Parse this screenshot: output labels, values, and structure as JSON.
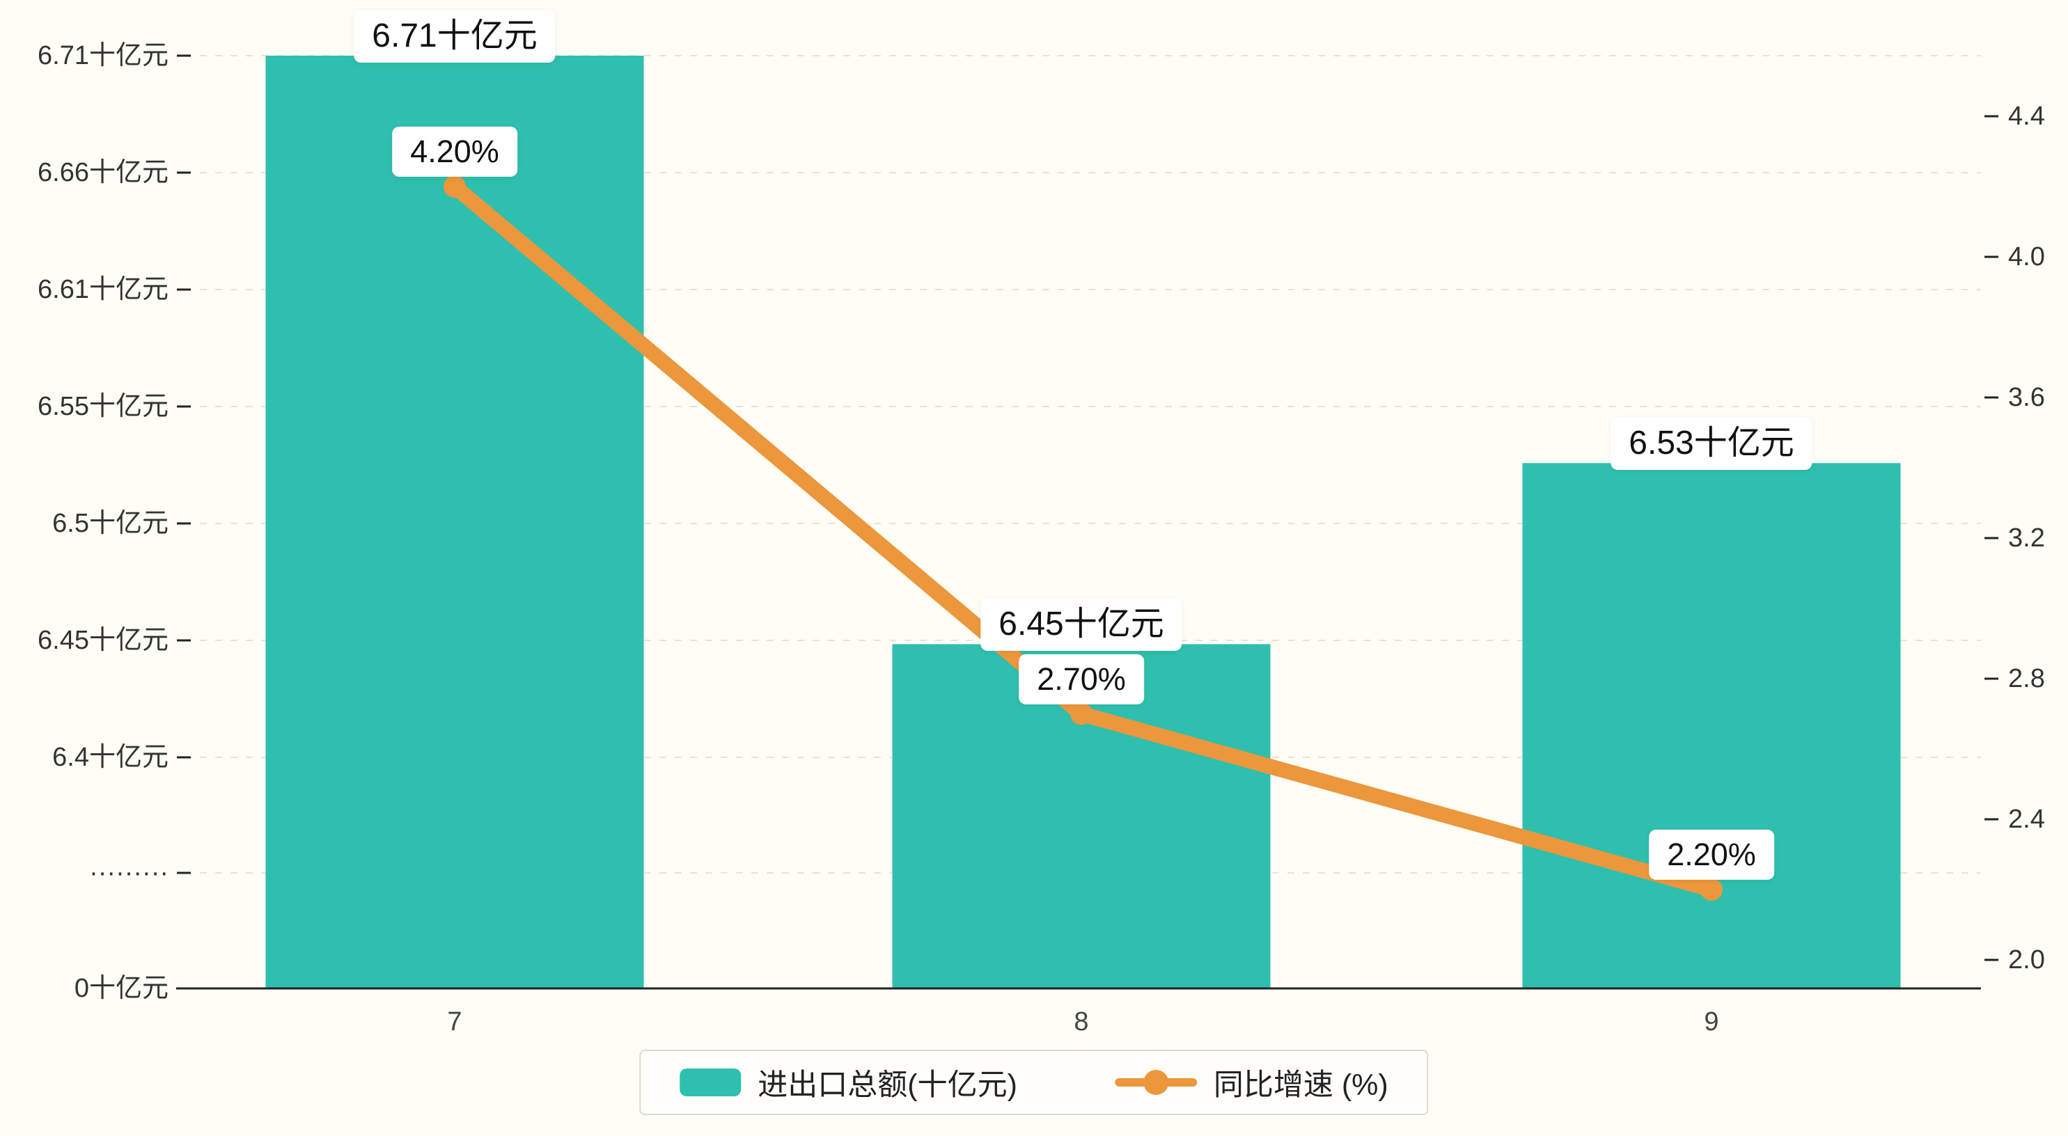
{
  "colors": {
    "background": "#fefdf6",
    "bar": "#2fbfae",
    "line": "#ec973b",
    "grid": "#e6e4da",
    "axis": "#222222",
    "tick_text": "#333333",
    "category_text": "#444444",
    "label_box": "#ffffff"
  },
  "chart_data": {
    "type": "bar+line",
    "categories": [
      "7",
      "8",
      "9"
    ],
    "series": [
      {
        "name": "进出口总额(十亿元)",
        "type": "bar",
        "axis": "left",
        "values": [
          6.71,
          6.45,
          6.53
        ],
        "labels": [
          "6.71十亿元",
          "6.45十亿元",
          "6.53十亿元"
        ]
      },
      {
        "name": "同比增速 (%)",
        "type": "line",
        "axis": "right",
        "values": [
          4.2,
          2.7,
          2.2
        ],
        "labels": [
          "4.20%",
          "2.70%",
          "2.20%"
        ]
      }
    ],
    "left_axis": {
      "tick_labels": [
        "6.71十亿元",
        "6.66十亿元",
        "6.61十亿元",
        "6.55十亿元",
        "6.5十亿元",
        "6.45十亿元",
        "6.4十亿元",
        "·········",
        "0十亿元"
      ],
      "axis_break": true
    },
    "right_axis": {
      "tick_labels": [
        "4.4",
        "4.0",
        "3.6",
        "3.2",
        "2.8",
        "2.4",
        "2.0"
      ],
      "max": 4.4,
      "min": 2.0
    },
    "grid": "dashed-horizontal",
    "legend_position": "bottom-center",
    "title": ""
  }
}
